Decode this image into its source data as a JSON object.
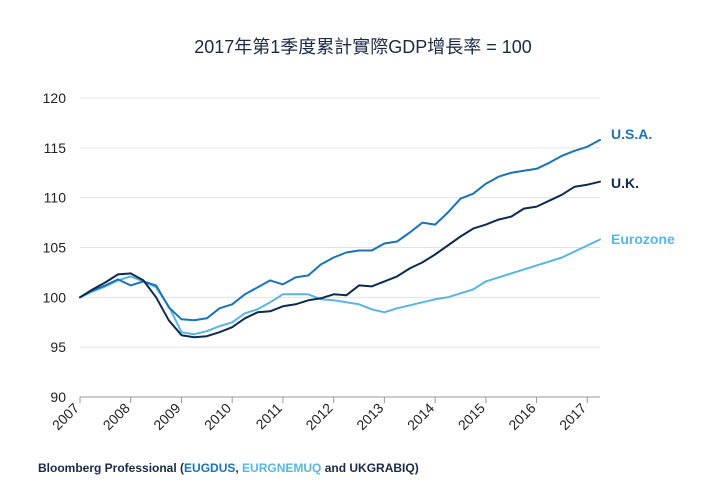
{
  "chart_data": {
    "type": "line",
    "title": "2017年第1季度累計實際GDP增長率 = 100",
    "xlabel": "",
    "ylabel": "",
    "ylim": [
      90,
      120
    ],
    "yticks": [
      90,
      95,
      100,
      105,
      110,
      115,
      120
    ],
    "xlim": [
      2007,
      2017.25
    ],
    "xticks": [
      "2007",
      "2008",
      "2009",
      "2010",
      "2011",
      "2012",
      "2013",
      "2014",
      "2015",
      "2016",
      "2017"
    ],
    "grid": "horizontal",
    "legend": "line-end labels",
    "x": [
      2007.0,
      2007.25,
      2007.5,
      2007.75,
      2008.0,
      2008.25,
      2008.5,
      2008.75,
      2009.0,
      2009.25,
      2009.5,
      2009.75,
      2010.0,
      2010.25,
      2010.5,
      2010.75,
      2011.0,
      2011.25,
      2011.5,
      2011.75,
      2012.0,
      2012.25,
      2012.5,
      2012.75,
      2013.0,
      2013.25,
      2013.5,
      2013.75,
      2014.0,
      2014.25,
      2014.5,
      2014.75,
      2015.0,
      2015.25,
      2015.5,
      2015.75,
      2016.0,
      2016.25,
      2016.5,
      2016.75,
      2017.0,
      2017.25
    ],
    "series": [
      {
        "name": "U.S.A.",
        "color": "#1a73b8",
        "values": [
          100.0,
          100.7,
          101.2,
          101.8,
          101.2,
          101.6,
          101.2,
          99.0,
          97.8,
          97.7,
          97.9,
          98.9,
          99.3,
          100.3,
          101.0,
          101.7,
          101.3,
          102.0,
          102.2,
          103.3,
          104.0,
          104.5,
          104.7,
          104.7,
          105.4,
          105.6,
          106.5,
          107.5,
          107.3,
          108.5,
          109.9,
          110.4,
          111.4,
          112.1,
          112.5,
          112.7,
          112.9,
          113.5,
          114.2,
          114.7,
          115.1,
          115.8
        ]
      },
      {
        "name": "U.K.",
        "color": "#0d2b4e",
        "values": [
          100.0,
          100.8,
          101.5,
          102.3,
          102.4,
          101.7,
          100.0,
          97.7,
          96.2,
          96.0,
          96.1,
          96.5,
          97.0,
          97.9,
          98.5,
          98.6,
          99.1,
          99.3,
          99.7,
          99.9,
          100.3,
          100.2,
          101.2,
          101.1,
          101.6,
          102.1,
          102.9,
          103.5,
          104.3,
          105.2,
          106.1,
          106.9,
          107.3,
          107.8,
          108.1,
          108.9,
          109.1,
          109.7,
          110.3,
          111.1,
          111.3,
          111.6
        ]
      },
      {
        "name": "Eurozone",
        "color": "#58b5e2",
        "values": [
          100.0,
          100.6,
          101.1,
          101.7,
          102.1,
          101.6,
          101.0,
          99.1,
          96.5,
          96.3,
          96.6,
          97.1,
          97.5,
          98.4,
          98.8,
          99.5,
          100.3,
          100.3,
          100.3,
          99.8,
          99.7,
          99.5,
          99.3,
          98.8,
          98.5,
          98.9,
          99.2,
          99.5,
          99.8,
          100.0,
          100.4,
          100.8,
          101.6,
          102.0,
          102.4,
          102.8,
          103.2,
          103.6,
          104.0,
          104.6,
          105.2,
          105.8
        ]
      }
    ]
  },
  "source": {
    "prefix": "Bloomberg Professional (",
    "code1": "EUGDUS",
    "sep1": ", ",
    "code2": "EURGNEMUQ",
    "rest": " and UKGRABIQ)"
  }
}
